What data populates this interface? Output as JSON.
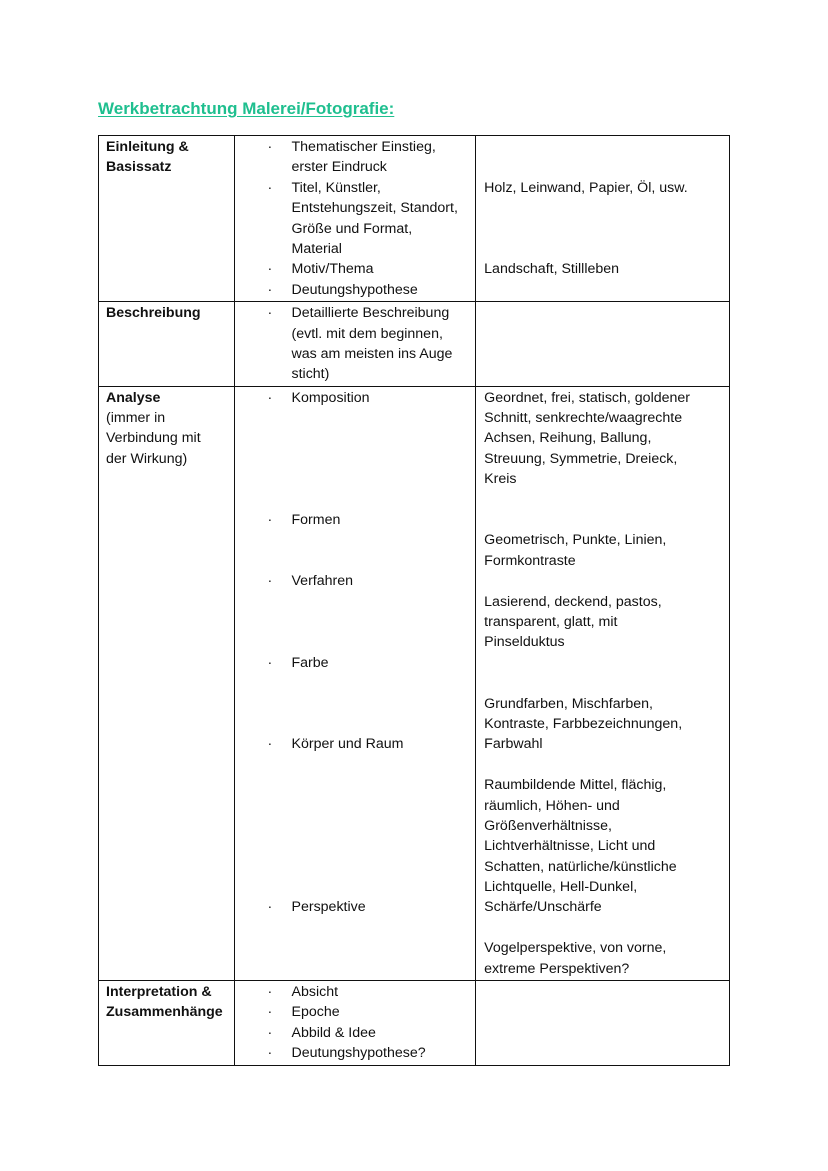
{
  "title": "Werkbetrachtung Malerei/Fotografie:",
  "title_color": "#1fbf8f",
  "rows": [
    {
      "heading": [
        {
          "text": "Einleitung &",
          "bold": true
        },
        {
          "text": "Basissatz",
          "bold": true
        }
      ],
      "points": [
        {
          "bullet": true,
          "text": "Thematischer Einstieg,"
        },
        {
          "bullet": false,
          "text": "erster Eindruck"
        },
        {
          "bullet": true,
          "text": "Titel, Künstler,"
        },
        {
          "bullet": false,
          "text": "Entstehungszeit, Standort,"
        },
        {
          "bullet": false,
          "text": "Größe und Format,"
        },
        {
          "bullet": false,
          "text": "Material"
        },
        {
          "bullet": true,
          "text": "Motiv/Thema"
        },
        {
          "bullet": true,
          "text": "Deutungshypothese"
        }
      ],
      "notes": [
        "",
        "",
        "Holz, Leinwand, Papier, Öl, usw.",
        "",
        "",
        "",
        "Landschaft, Stillleben",
        ""
      ]
    },
    {
      "heading": [
        {
          "text": "Beschreibung",
          "bold": true
        }
      ],
      "points": [
        {
          "bullet": true,
          "text": "Detaillierte Beschreibung"
        },
        {
          "bullet": false,
          "text": "(evtl. mit dem beginnen,"
        },
        {
          "bullet": false,
          "text": "was am meisten ins Auge"
        },
        {
          "bullet": false,
          "text": "sticht)"
        }
      ],
      "notes": [
        "",
        "",
        "",
        ""
      ]
    },
    {
      "heading": [
        {
          "text": "Analyse",
          "bold": true
        },
        {
          "text": "(immer in",
          "bold": false
        },
        {
          "text": "Verbindung mit",
          "bold": false
        },
        {
          "text": "der Wirkung)",
          "bold": false
        }
      ],
      "points": [
        {
          "bullet": true,
          "text": "Komposition"
        },
        {
          "bullet": false,
          "text": ""
        },
        {
          "bullet": false,
          "text": ""
        },
        {
          "bullet": false,
          "text": ""
        },
        {
          "bullet": false,
          "text": ""
        },
        {
          "bullet": false,
          "text": ""
        },
        {
          "bullet": true,
          "text": "Formen"
        },
        {
          "bullet": false,
          "text": ""
        },
        {
          "bullet": false,
          "text": ""
        },
        {
          "bullet": true,
          "text": "Verfahren"
        },
        {
          "bullet": false,
          "text": ""
        },
        {
          "bullet": false,
          "text": ""
        },
        {
          "bullet": false,
          "text": ""
        },
        {
          "bullet": true,
          "text": "Farbe"
        },
        {
          "bullet": false,
          "text": ""
        },
        {
          "bullet": false,
          "text": ""
        },
        {
          "bullet": false,
          "text": ""
        },
        {
          "bullet": true,
          "text": "Körper und Raum"
        },
        {
          "bullet": false,
          "text": ""
        },
        {
          "bullet": false,
          "text": ""
        },
        {
          "bullet": false,
          "text": ""
        },
        {
          "bullet": false,
          "text": ""
        },
        {
          "bullet": false,
          "text": ""
        },
        {
          "bullet": false,
          "text": ""
        },
        {
          "bullet": false,
          "text": ""
        },
        {
          "bullet": true,
          "text": "Perspektive"
        },
        {
          "bullet": false,
          "text": ""
        },
        {
          "bullet": false,
          "text": ""
        },
        {
          "bullet": false,
          "text": ""
        }
      ],
      "notes": [
        "Geordnet, frei, statisch, goldener",
        "Schnitt, senkrechte/waagrechte",
        "Achsen, Reihung, Ballung,",
        "Streuung, Symmetrie, Dreieck,",
        "Kreis",
        "",
        "",
        "Geometrisch, Punkte, Linien,",
        "Formkontraste",
        "",
        "Lasierend, deckend, pastos,",
        "transparent, glatt, mit",
        "Pinselduktus",
        "",
        "",
        "Grundfarben, Mischfarben,",
        "Kontraste, Farbbezeichnungen,",
        "Farbwahl",
        "",
        "Raumbildende Mittel, flächig,",
        "räumlich, Höhen- und",
        "Größenverhältnisse,",
        "Lichtverhältnisse, Licht und",
        "Schatten, natürliche/künstliche",
        "Lichtquelle, Hell-Dunkel,",
        "Schärfe/Unschärfe",
        "",
        "Vogelperspektive, von vorne,",
        "extreme Perspektiven?"
      ]
    },
    {
      "heading": [
        {
          "text": "Interpretation &",
          "bold": true
        },
        {
          "text": "Zusammenhänge",
          "bold": true
        }
      ],
      "points": [
        {
          "bullet": true,
          "text": "Absicht"
        },
        {
          "bullet": true,
          "text": "Epoche"
        },
        {
          "bullet": true,
          "text": "Abbild & Idee"
        },
        {
          "bullet": true,
          "text": "Deutungshypothese?"
        }
      ],
      "notes": [
        "",
        "",
        "",
        ""
      ]
    }
  ],
  "bullet_glyph": "·"
}
